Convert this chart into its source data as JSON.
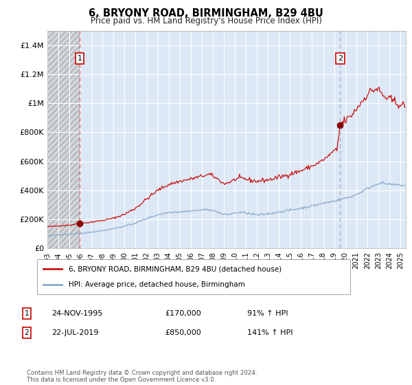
{
  "title": "6, BRYONY ROAD, BIRMINGHAM, B29 4BU",
  "subtitle": "Price paid vs. HM Land Registry's House Price Index (HPI)",
  "xlim": [
    1993.0,
    2025.5
  ],
  "ylim": [
    0,
    1500000
  ],
  "yticks": [
    0,
    200000,
    400000,
    600000,
    800000,
    1000000,
    1200000,
    1400000
  ],
  "ytick_labels": [
    "£0",
    "£200K",
    "£400K",
    "£600K",
    "£800K",
    "£1M",
    "£1.2M",
    "£1.4M"
  ],
  "xtick_years": [
    1993,
    1994,
    1995,
    1996,
    1997,
    1998,
    1999,
    2000,
    2001,
    2002,
    2003,
    2004,
    2005,
    2006,
    2007,
    2008,
    2009,
    2010,
    2011,
    2012,
    2013,
    2014,
    2015,
    2016,
    2017,
    2018,
    2019,
    2020,
    2021,
    2022,
    2023,
    2024,
    2025
  ],
  "sale1_x": 1995.92,
  "sale1_y": 170000,
  "sale1_label": "1",
  "sale1_date": "24-NOV-1995",
  "sale1_price": "£170,000",
  "sale1_hpi": "91% ↑ HPI",
  "sale2_x": 2019.55,
  "sale2_y": 850000,
  "sale2_label": "2",
  "sale2_date": "22-JUL-2019",
  "sale2_price": "£850,000",
  "sale2_hpi": "141% ↑ HPI",
  "bg_plot": "#dce8f5",
  "grid_color": "#ffffff",
  "red_line_color": "#cc1111",
  "blue_line_color": "#88aacc",
  "sale_dot_color": "#880000",
  "vline_color": "#dd6666",
  "vline2_color": "#aaaacc",
  "legend_label_red": "6, BRYONY ROAD, BIRMINGHAM, B29 4BU (detached house)",
  "legend_label_blue": "HPI: Average price, detached house, Birmingham",
  "footer": "Contains HM Land Registry data © Crown copyright and database right 2024.\nThis data is licensed under the Open Government Licence v3.0."
}
